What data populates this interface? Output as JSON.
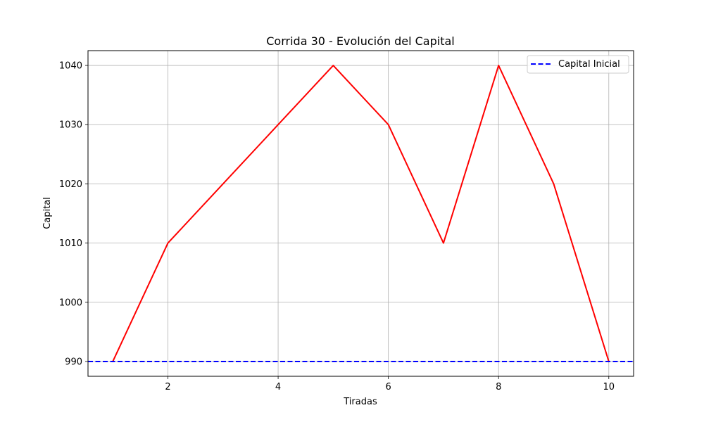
{
  "chart_data": {
    "type": "line",
    "title": "Corrida 30 - Evolución del Capital",
    "xlabel": "Tiradas",
    "ylabel": "Capital",
    "xlim": [
      0.55,
      10.45
    ],
    "ylim": [
      987.5,
      1042.5
    ],
    "xticks": [
      2,
      4,
      6,
      8,
      10
    ],
    "yticks": [
      990,
      1000,
      1010,
      1020,
      1030,
      1040
    ],
    "grid": true,
    "legend_position": "top-right",
    "series": [
      {
        "color": "#ff0000",
        "line_style": "solid",
        "x": [
          1,
          2,
          3,
          4,
          5,
          6,
          7,
          8,
          9,
          10
        ],
        "y": [
          990,
          1010,
          1020,
          1030,
          1040,
          1030,
          1010,
          1040,
          1020,
          990
        ]
      }
    ],
    "reference_lines": [
      {
        "name": "Capital Inicial",
        "orientation": "horizontal",
        "value": 990,
        "color": "#0000ff",
        "line_style": "dashed"
      }
    ]
  }
}
